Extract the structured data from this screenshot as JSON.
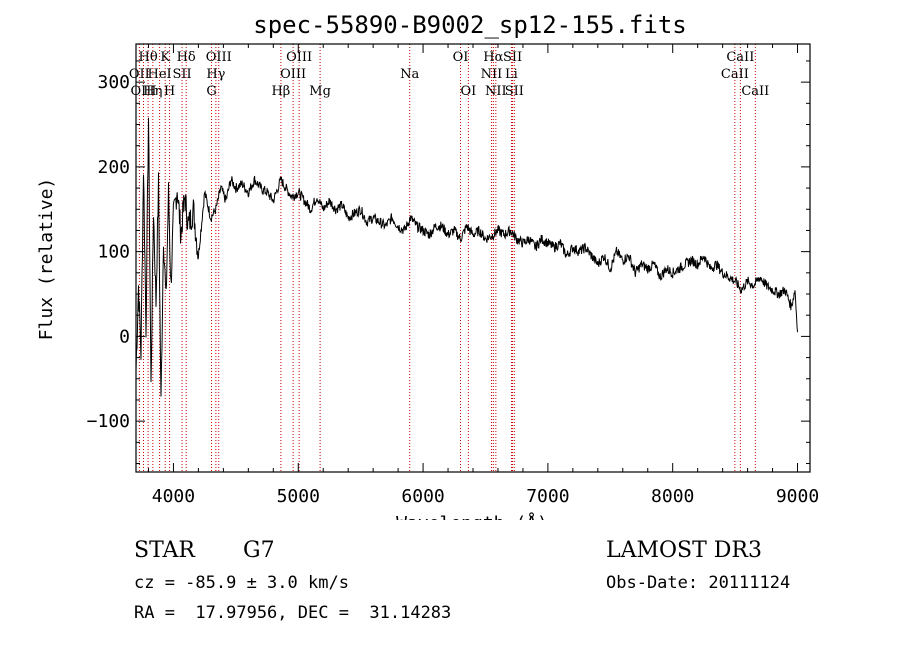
{
  "chart_data": {
    "type": "line",
    "title": "spec-55890-B9002_sp12-155.fits",
    "xlabel": "Wavelength (Å)",
    "ylabel": "Flux (relative)",
    "xlim": [
      3700,
      9100
    ],
    "ylim": [
      -160,
      345
    ],
    "xticks": [
      4000,
      5000,
      6000,
      7000,
      8000,
      9000
    ],
    "yticks": [
      -100,
      0,
      100,
      200,
      300
    ],
    "series": [
      {
        "name": "flux",
        "color": "#000000",
        "x": [
          3700,
          3720,
          3740,
          3760,
          3780,
          3800,
          3820,
          3840,
          3860,
          3880,
          3900,
          3920,
          3940,
          3960,
          3980,
          4000,
          4030,
          4060,
          4090,
          4120,
          4160,
          4200,
          4250,
          4300,
          4340,
          4380,
          4420,
          4460,
          4500,
          4550,
          4600,
          4650,
          4700,
          4750,
          4800,
          4861,
          4900,
          4950,
          5000,
          5050,
          5100,
          5150,
          5200,
          5250,
          5300,
          5350,
          5400,
          5450,
          5500,
          5550,
          5600,
          5650,
          5700,
          5750,
          5800,
          5850,
          5900,
          5950,
          6000,
          6050,
          6100,
          6150,
          6200,
          6250,
          6300,
          6350,
          6400,
          6450,
          6500,
          6563,
          6600,
          6650,
          6700,
          6750,
          6800,
          6850,
          6900,
          6950,
          7000,
          7050,
          7100,
          7150,
          7200,
          7250,
          7300,
          7350,
          7400,
          7450,
          7500,
          7550,
          7600,
          7650,
          7700,
          7750,
          7800,
          7850,
          7900,
          7950,
          8000,
          8050,
          8100,
          8150,
          8200,
          8250,
          8300,
          8350,
          8400,
          8450,
          8500,
          8550,
          8600,
          8650,
          8700,
          8750,
          8800,
          8850,
          8900,
          8950,
          8980,
          9000
        ],
        "y": [
          -40,
          60,
          -20,
          200,
          10,
          260,
          -60,
          150,
          40,
          180,
          -80,
          120,
          40,
          170,
          60,
          140,
          175,
          120,
          165,
          130,
          150,
          95,
          170,
          140,
          150,
          175,
          160,
          185,
          175,
          180,
          170,
          185,
          175,
          170,
          160,
          185,
          175,
          165,
          170,
          160,
          150,
          165,
          150,
          160,
          150,
          155,
          140,
          145,
          150,
          135,
          140,
          135,
          130,
          140,
          130,
          125,
          140,
          130,
          125,
          120,
          130,
          130,
          120,
          125,
          115,
          130,
          120,
          125,
          115,
          120,
          125,
          120,
          125,
          115,
          110,
          115,
          105,
          115,
          110,
          105,
          110,
          95,
          105,
          100,
          105,
          95,
          85,
          95,
          80,
          100,
          90,
          95,
          75,
          85,
          80,
          85,
          70,
          80,
          75,
          80,
          85,
          90,
          85,
          95,
          80,
          85,
          75,
          70,
          65,
          55,
          65,
          60,
          70,
          60,
          55,
          50,
          55,
          35,
          55,
          5
        ]
      }
    ],
    "line_labels": [
      {
        "label": "Hθ",
        "wavelength": 3797,
        "row": 1
      },
      {
        "label": "OII",
        "wavelength": 3727,
        "row": 2
      },
      {
        "label": "OIII",
        "wavelength": 3760,
        "row": 3
      },
      {
        "label": "K",
        "wavelength": 3934,
        "row": 1
      },
      {
        "label": "HeI",
        "wavelength": 3889,
        "row": 2
      },
      {
        "label": "Hη",
        "wavelength": 3835,
        "row": 3
      },
      {
        "label": "SII",
        "wavelength": 4069,
        "row": 2
      },
      {
        "label": "H",
        "wavelength": 3969,
        "row": 3
      },
      {
        "label": "Hδ",
        "wavelength": 4102,
        "row": 1
      },
      {
        "label": "OIII",
        "wavelength": 4363,
        "row": 1
      },
      {
        "label": "Hγ",
        "wavelength": 4340,
        "row": 2
      },
      {
        "label": "G",
        "wavelength": 4305,
        "row": 3
      },
      {
        "label": "Hβ",
        "wavelength": 4861,
        "row": 3
      },
      {
        "label": "OIII",
        "wavelength": 5007,
        "row": 1
      },
      {
        "label": "OIII",
        "wavelength": 4959,
        "row": 2
      },
      {
        "label": "Mg",
        "wavelength": 5175,
        "row": 3
      },
      {
        "label": "Na",
        "wavelength": 5893,
        "row": 2
      },
      {
        "label": "OI",
        "wavelength": 6300,
        "row": 1
      },
      {
        "label": "OI",
        "wavelength": 6363,
        "row": 3
      },
      {
        "label": "Hα",
        "wavelength": 6563,
        "row": 1
      },
      {
        "label": "NII",
        "wavelength": 6548,
        "row": 2
      },
      {
        "label": "NII",
        "wavelength": 6583,
        "row": 3
      },
      {
        "label": "SII",
        "wavelength": 6717,
        "row": 1
      },
      {
        "label": "Li",
        "wavelength": 6708,
        "row": 2
      },
      {
        "label": "SII",
        "wavelength": 6731,
        "row": 3
      },
      {
        "label": "CaII",
        "wavelength": 8542,
        "row": 1
      },
      {
        "label": "CaII",
        "wavelength": 8498,
        "row": 2
      },
      {
        "label": "CaII",
        "wavelength": 8662,
        "row": 3
      }
    ],
    "line_marker_color": "#cc0000"
  },
  "info": {
    "class": "STAR",
    "subclass": "G7",
    "survey": "LAMOST DR3",
    "cz": "cz = -85.9 ± 3.0 km/s",
    "obs_date": "Obs-Date: 20111124",
    "coords": "RA =  17.97956, DEC =  31.14283"
  }
}
